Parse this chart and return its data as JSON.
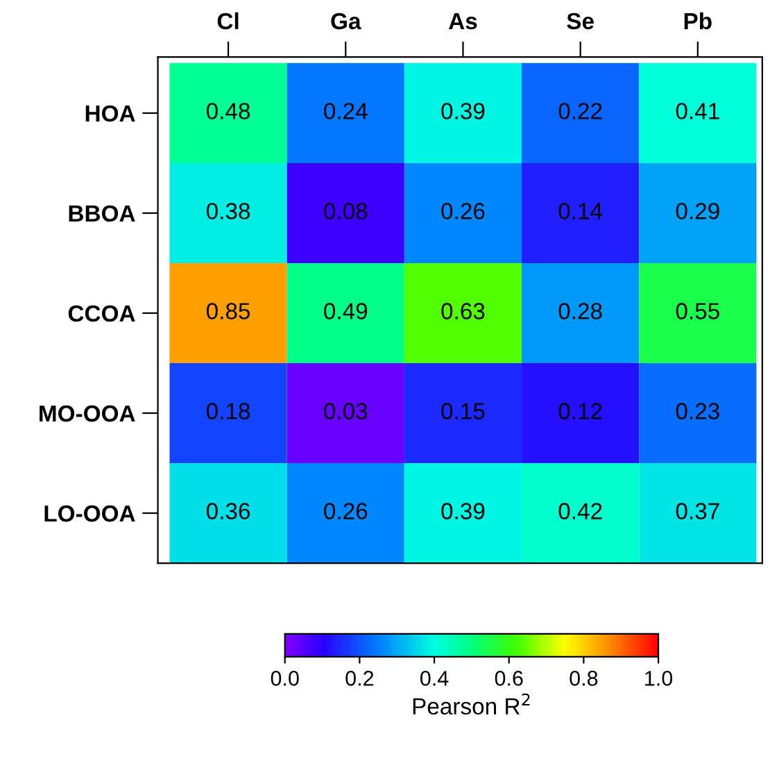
{
  "chart_data": {
    "type": "heatmap",
    "categories": [
      "Cl",
      "Ga",
      "As",
      "Se",
      "Pb"
    ],
    "y_categories": [
      "HOA",
      "BBOA",
      "CCOA",
      "MO-OOA",
      "LO-OOA"
    ],
    "cells": [
      [
        0.48,
        0.24,
        0.39,
        0.22,
        0.41
      ],
      [
        0.38,
        0.08,
        0.26,
        0.14,
        0.29
      ],
      [
        0.85,
        0.49,
        0.63,
        0.28,
        0.55
      ],
      [
        0.18,
        0.03,
        0.15,
        0.12,
        0.23
      ],
      [
        0.36,
        0.26,
        0.39,
        0.42,
        0.37
      ]
    ],
    "data_labels": true,
    "clim": [
      0,
      1
    ],
    "cticks": [
      {
        "value": 0,
        "label": "0.0"
      },
      {
        "value": 0.2,
        "label": "0.2"
      },
      {
        "value": 0.4,
        "label": "0.4"
      },
      {
        "value": 0.6,
        "label": "0.6"
      },
      {
        "value": 0.8,
        "label": "0.8"
      },
      {
        "value": 1,
        "label": "1.0"
      }
    ],
    "clabel": "Pearson R$^{2}$"
  }
}
